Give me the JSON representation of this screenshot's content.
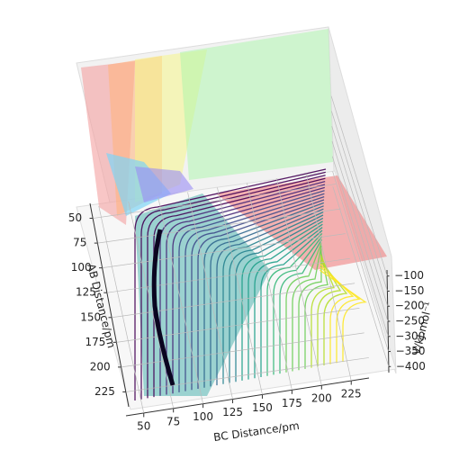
{
  "chart_data": {
    "type": "surface3d",
    "x_label": "AB Distance/pm",
    "y_label": "BC Distance/pm",
    "z_label": "V/kJ.mol⁻¹",
    "xlim": [
      35,
      240
    ],
    "xticks": [
      50,
      75,
      100,
      125,
      150,
      175,
      200,
      225
    ],
    "ylim": [
      35,
      240
    ],
    "yticks": [
      50,
      75,
      100,
      125,
      150,
      175,
      200,
      225
    ],
    "zlim": [
      -420,
      -80
    ],
    "zticks": [
      {
        "value": -100,
        "label": "−100"
      },
      {
        "value": -150,
        "label": "−150"
      },
      {
        "value": -200,
        "label": "−200"
      },
      {
        "value": -250,
        "label": "−250"
      },
      {
        "value": -300,
        "label": "−300"
      },
      {
        "value": -350,
        "label": "−350"
      },
      {
        "value": -400,
        "label": "−400"
      }
    ],
    "grid": true
  }
}
